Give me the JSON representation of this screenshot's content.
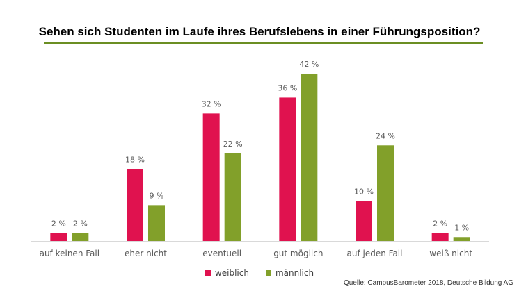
{
  "chart_data": {
    "type": "bar",
    "title": "Sehen sich Studenten im Laufe ihres Berufslebens in einer Führungsposition?",
    "categories": [
      "auf keinen Fall",
      "eher nicht",
      "eventuell",
      "gut möglich",
      "auf jeden Fall",
      "weiß nicht"
    ],
    "series": [
      {
        "name": "weiblich",
        "color": "#e0124f",
        "values": [
          2,
          18,
          32,
          36,
          10,
          2
        ],
        "labels": [
          "2 %",
          "18 %",
          "32 %",
          "36 %",
          "10 %",
          "2 %"
        ]
      },
      {
        "name": "männlich",
        "color": "#82a02a",
        "values": [
          2,
          9,
          22,
          42,
          24,
          1
        ],
        "labels": [
          "2 %",
          "9 %",
          "22 %",
          "42 %",
          "24 %",
          "1 %"
        ]
      }
    ],
    "ylim": [
      0,
      42
    ],
    "legend": "bottom",
    "grid": false
  },
  "source": "Quelle: CampusBarometer 2018, Deutsche Bildung AG",
  "colors": {
    "title_rule": "#6b8e23",
    "axis": "#d9d9d9",
    "text": "#595959"
  }
}
